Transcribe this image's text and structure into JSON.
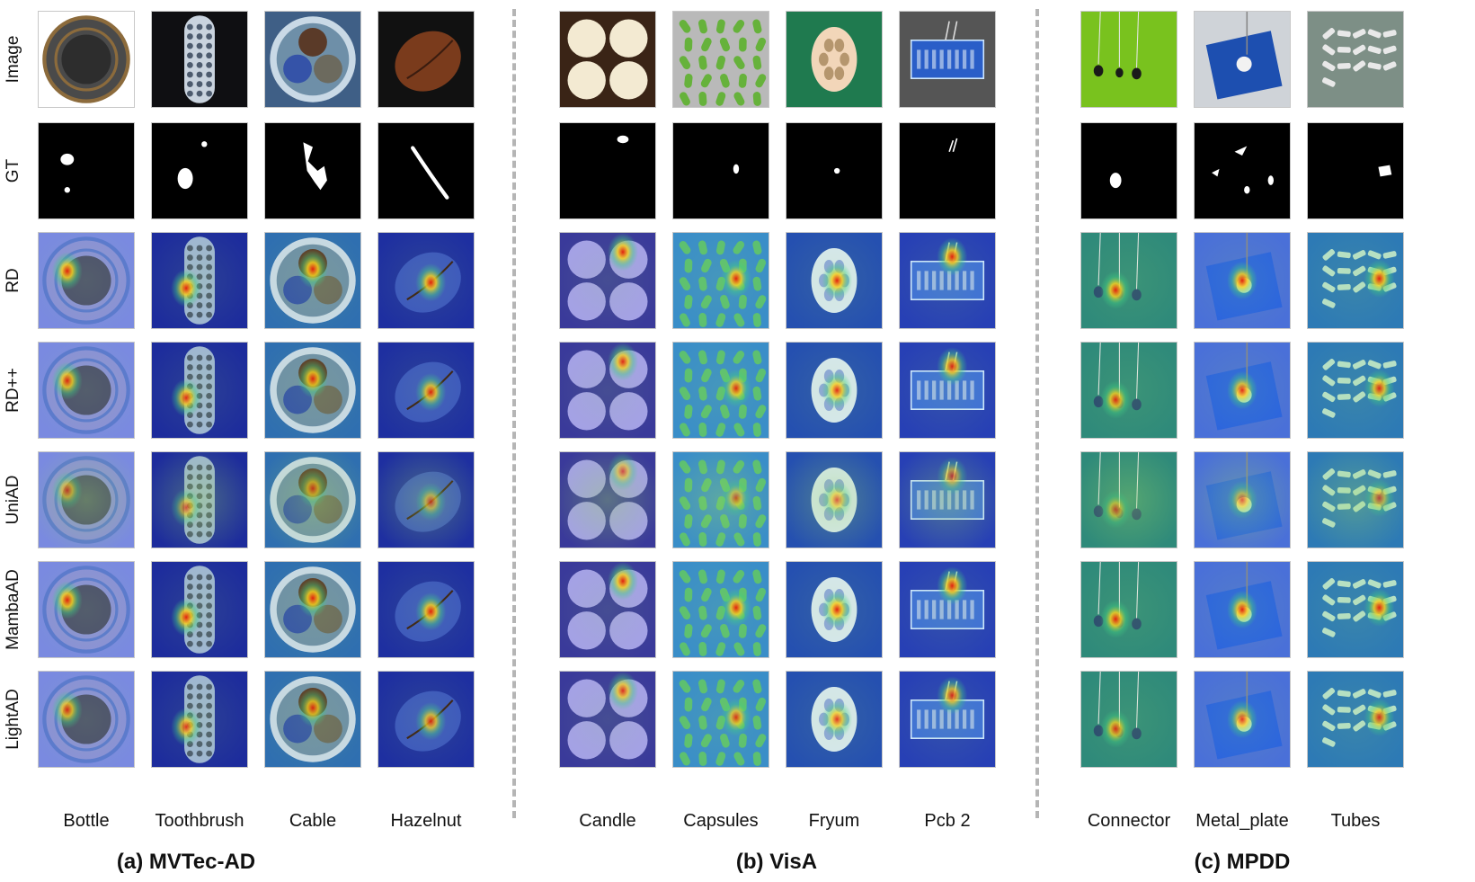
{
  "row_labels": [
    "Image",
    "GT",
    "RD",
    "RD++",
    "UniAD",
    "MambaAD",
    "LightAD"
  ],
  "groups": [
    {
      "title": "(a) MVTec-AD",
      "columns": [
        {
          "label": "Bottle",
          "kind": "bottle",
          "bg": "#ffffff",
          "heatbg": "#7a8ae0"
        },
        {
          "label": "Toothbrush",
          "kind": "toothbrush",
          "bg": "#0f0f12",
          "heatbg": "#1d2c9c"
        },
        {
          "label": "Cable",
          "kind": "cable",
          "bg": "#3f5f86",
          "heatbg": "#2f6fb0"
        },
        {
          "label": "Hazelnut",
          "kind": "hazelnut",
          "bg": "#111111",
          "heatbg": "#1e2fa0"
        }
      ]
    },
    {
      "title": "(b) VisA",
      "columns": [
        {
          "label": "Candle",
          "kind": "candle",
          "bg": "#3a2416",
          "heatbg": "#3a3a9a"
        },
        {
          "label": "Capsules",
          "kind": "capsules",
          "bg": "#b9b9b9",
          "heatbg": "#3a8ec8"
        },
        {
          "label": "Fryum",
          "kind": "fryum",
          "bg": "#1f7a4f",
          "heatbg": "#2550b0"
        },
        {
          "label": "Pcb 2",
          "kind": "pcb",
          "bg": "#555555",
          "heatbg": "#2740b5"
        }
      ]
    },
    {
      "title": "(c) MPDD",
      "columns": [
        {
          "label": "Connector",
          "kind": "connector",
          "bg": "#79c21e",
          "heatbg": "#2f8a7a"
        },
        {
          "label": "Metal_plate",
          "kind": "metal",
          "bg": "#cfd3d8",
          "heatbg": "#4a70d8"
        },
        {
          "label": "Tubes",
          "kind": "tubes",
          "bg": "#7d8f86",
          "heatbg": "#2d7ab5"
        }
      ]
    }
  ]
}
